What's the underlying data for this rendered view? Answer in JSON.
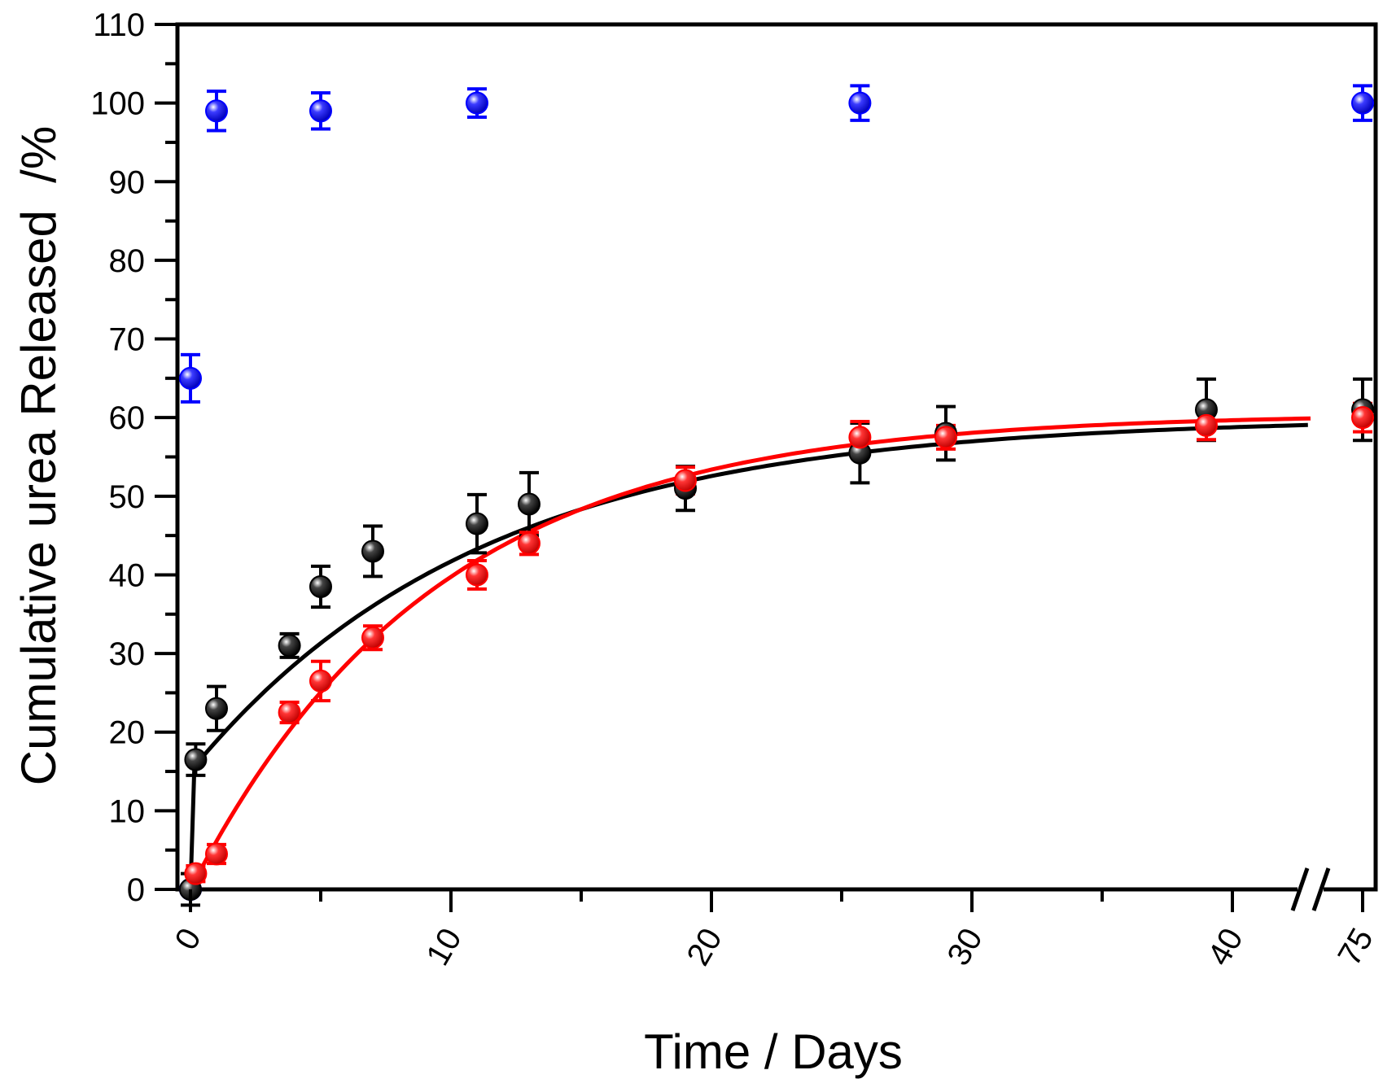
{
  "chart_data": {
    "type": "scatter",
    "title": "",
    "xlabel": "Time / Days",
    "ylabel": "Cumulative urea Released  /%",
    "xlim": [
      -0.5,
      45.5
    ],
    "ylim": [
      0,
      110
    ],
    "x_axis_break": {
      "between": 43,
      "after_value": 75,
      "after_position": 45
    },
    "x_ticks": [
      {
        "value": 0,
        "label": "0"
      },
      {
        "value": 10,
        "label": "10"
      },
      {
        "value": 20,
        "label": "20"
      },
      {
        "value": 30,
        "label": "30"
      },
      {
        "value": 40,
        "label": "40"
      },
      {
        "value": 75,
        "label": "75"
      }
    ],
    "y_ticks": [
      0,
      10,
      20,
      30,
      40,
      50,
      60,
      70,
      80,
      90,
      100,
      110
    ],
    "y_tick_labels": [
      "0",
      "10",
      "20",
      "30",
      "40",
      "50",
      "60",
      "70",
      "80",
      "90",
      "100",
      "110"
    ],
    "grid": false,
    "series": [
      {
        "color": "#0000ff",
        "points": [
          {
            "x": 0,
            "y": 0,
            "err": 0
          },
          {
            "x": 0,
            "y": 65,
            "err": 3
          },
          {
            "x": 1,
            "y": 99,
            "err": 2.5
          },
          {
            "x": 5,
            "y": 99,
            "err": 2.3
          },
          {
            "x": 11,
            "y": 100,
            "err": 1.8
          },
          {
            "x": 25.7,
            "y": 100,
            "err": 2.2
          },
          {
            "x": 75,
            "y": 100,
            "err": 2.2
          }
        ]
      },
      {
        "color": "#000000",
        "fit": {
          "model": "biphasic",
          "a": 15,
          "b": 45,
          "k": 0.09,
          "x_from": 0.15,
          "x_to": 43
        },
        "points": [
          {
            "x": 0,
            "y": 0,
            "err": 2
          },
          {
            "x": 0.2,
            "y": 16.5,
            "err": 2
          },
          {
            "x": 1,
            "y": 23,
            "err": 2.8
          },
          {
            "x": 3.8,
            "y": 31,
            "err": 1.5
          },
          {
            "x": 5,
            "y": 38.5,
            "err": 2.6
          },
          {
            "x": 7,
            "y": 43,
            "err": 3.2
          },
          {
            "x": 11,
            "y": 46.5,
            "err": 3.7
          },
          {
            "x": 13,
            "y": 49,
            "err": 4
          },
          {
            "x": 19,
            "y": 51,
            "err": 2.8
          },
          {
            "x": 25.7,
            "y": 55.5,
            "err": 3.8
          },
          {
            "x": 29,
            "y": 58,
            "err": 3.4
          },
          {
            "x": 39,
            "y": 61,
            "err": 3.9
          },
          {
            "x": 75,
            "y": 61,
            "err": 3.9
          }
        ]
      },
      {
        "color": "#ff0000",
        "fit": {
          "model": "first-order",
          "a": 60.5,
          "k": 0.107,
          "x_from": 0,
          "x_to": 43
        },
        "points": [
          {
            "x": 0.2,
            "y": 2,
            "err": 1
          },
          {
            "x": 1,
            "y": 4.5,
            "err": 1.2
          },
          {
            "x": 3.8,
            "y": 22.5,
            "err": 1.3
          },
          {
            "x": 5,
            "y": 26.5,
            "err": 2.5
          },
          {
            "x": 7,
            "y": 32,
            "err": 1.5
          },
          {
            "x": 11,
            "y": 40,
            "err": 1.8
          },
          {
            "x": 13,
            "y": 44,
            "err": 1.4
          },
          {
            "x": 19,
            "y": 52,
            "err": 1.7
          },
          {
            "x": 25.7,
            "y": 57.5,
            "err": 2
          },
          {
            "x": 29,
            "y": 57.5,
            "err": 1.5
          },
          {
            "x": 39,
            "y": 59,
            "err": 1.8
          },
          {
            "x": 75,
            "y": 60,
            "err": 1.8
          }
        ]
      }
    ]
  }
}
